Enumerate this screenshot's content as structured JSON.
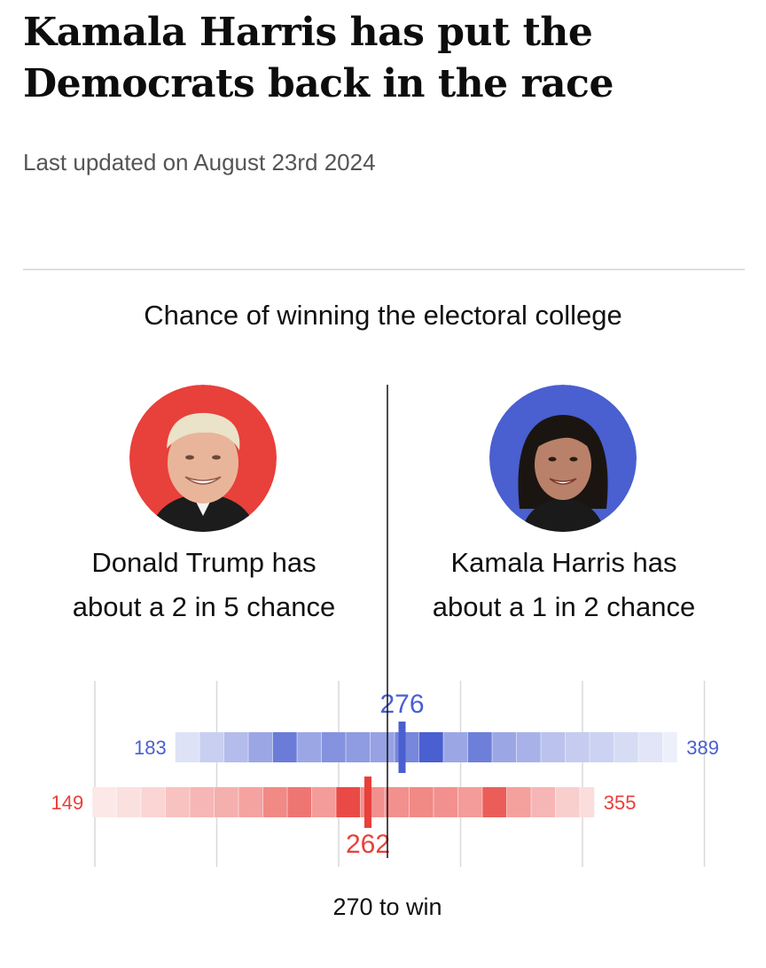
{
  "headline": "Kamala Harris has put the Democrats back in the race",
  "updated": "Last updated on August 23rd 2024",
  "candidates": [
    {
      "name": "Donald Trump",
      "caption_line1": "Donald Trump has",
      "caption_line2": "about a 2 in 5 chance",
      "color": "#e8403b",
      "portrait_icon": "trump-portrait-icon"
    },
    {
      "name": "Kamala Harris",
      "caption_line1": "Kamala Harris has",
      "caption_line2": "about a 1 in 2 chance",
      "color": "#4a5fd0",
      "portrait_icon": "harris-portrait-icon"
    }
  ],
  "chart_data": {
    "type": "bar",
    "title": "Chance of winning the electoral college",
    "threshold": 270,
    "threshold_label": "270 to win",
    "x_range": [
      130,
      400
    ],
    "gridlines": [
      150,
      200,
      250,
      300,
      350,
      400
    ],
    "series": [
      {
        "name": "Kamala Harris",
        "color": "#4a5fd0",
        "min": 183,
        "max": 389,
        "median": 276,
        "min_label": "183",
        "max_label": "389",
        "median_label": "276",
        "bands": [
          {
            "from": 183,
            "to": 193,
            "intensity": 0.18
          },
          {
            "from": 193,
            "to": 203,
            "intensity": 0.3
          },
          {
            "from": 203,
            "to": 213,
            "intensity": 0.42
          },
          {
            "from": 213,
            "to": 223,
            "intensity": 0.55
          },
          {
            "from": 223,
            "to": 233,
            "intensity": 0.82
          },
          {
            "from": 233,
            "to": 243,
            "intensity": 0.55
          },
          {
            "from": 243,
            "to": 253,
            "intensity": 0.68
          },
          {
            "from": 253,
            "to": 263,
            "intensity": 0.62
          },
          {
            "from": 263,
            "to": 273,
            "intensity": 0.58
          },
          {
            "from": 273,
            "to": 283,
            "intensity": 0.75
          },
          {
            "from": 283,
            "to": 293,
            "intensity": 1.0
          },
          {
            "from": 293,
            "to": 303,
            "intensity": 0.55
          },
          {
            "from": 303,
            "to": 313,
            "intensity": 0.8
          },
          {
            "from": 313,
            "to": 323,
            "intensity": 0.55
          },
          {
            "from": 323,
            "to": 333,
            "intensity": 0.48
          },
          {
            "from": 333,
            "to": 343,
            "intensity": 0.38
          },
          {
            "from": 343,
            "to": 353,
            "intensity": 0.32
          },
          {
            "from": 353,
            "to": 363,
            "intensity": 0.28
          },
          {
            "from": 363,
            "to": 373,
            "intensity": 0.22
          },
          {
            "from": 373,
            "to": 383,
            "intensity": 0.16
          },
          {
            "from": 383,
            "to": 389,
            "intensity": 0.1
          }
        ]
      },
      {
        "name": "Donald Trump",
        "color": "#e8403b",
        "min": 149,
        "max": 355,
        "median": 262,
        "min_label": "149",
        "max_label": "355",
        "median_label": "262",
        "bands": [
          {
            "from": 149,
            "to": 159,
            "intensity": 0.12
          },
          {
            "from": 159,
            "to": 169,
            "intensity": 0.16
          },
          {
            "from": 169,
            "to": 179,
            "intensity": 0.22
          },
          {
            "from": 179,
            "to": 189,
            "intensity": 0.32
          },
          {
            "from": 189,
            "to": 199,
            "intensity": 0.38
          },
          {
            "from": 199,
            "to": 209,
            "intensity": 0.42
          },
          {
            "from": 209,
            "to": 219,
            "intensity": 0.48
          },
          {
            "from": 219,
            "to": 229,
            "intensity": 0.62
          },
          {
            "from": 229,
            "to": 239,
            "intensity": 0.72
          },
          {
            "from": 239,
            "to": 249,
            "intensity": 0.52
          },
          {
            "from": 249,
            "to": 259,
            "intensity": 0.95
          },
          {
            "from": 259,
            "to": 269,
            "intensity": 0.58
          },
          {
            "from": 269,
            "to": 279,
            "intensity": 0.58
          },
          {
            "from": 279,
            "to": 289,
            "intensity": 0.62
          },
          {
            "from": 289,
            "to": 299,
            "intensity": 0.58
          },
          {
            "from": 299,
            "to": 309,
            "intensity": 0.52
          },
          {
            "from": 309,
            "to": 319,
            "intensity": 0.85
          },
          {
            "from": 319,
            "to": 329,
            "intensity": 0.5
          },
          {
            "from": 329,
            "to": 339,
            "intensity": 0.38
          },
          {
            "from": 339,
            "to": 349,
            "intensity": 0.25
          },
          {
            "from": 349,
            "to": 355,
            "intensity": 0.18
          }
        ]
      }
    ]
  }
}
